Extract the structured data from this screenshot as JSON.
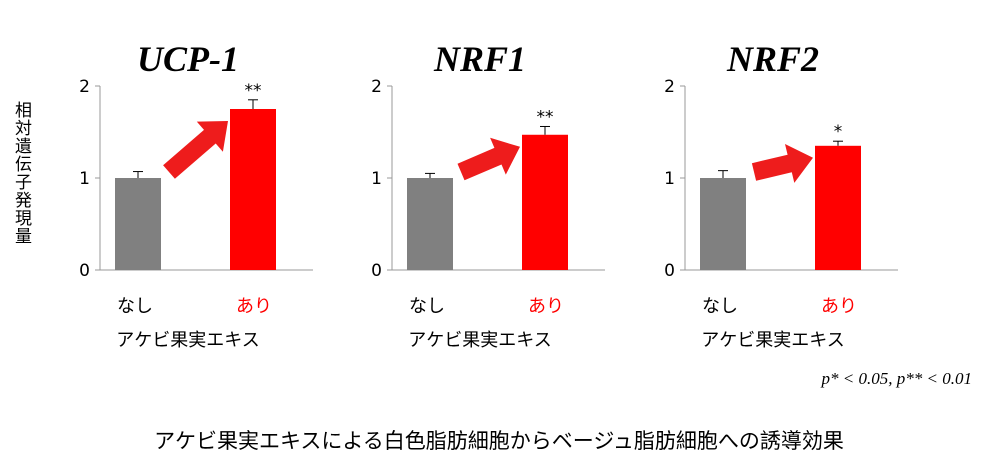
{
  "y_axis_label": "相対遺伝子発現量",
  "x_axis_title": "アケビ果実エキス",
  "significance_note": "p* < 0.05, p** < 0.01",
  "caption": "アケビ果実エキスによる白色脂肪細胞からベージュ脂肪細胞への誘導効果",
  "colors": {
    "control": "#808080",
    "treated": "#ff0000",
    "arrow": "#ee1c1c"
  },
  "chart_data": [
    {
      "type": "bar",
      "title": "UCP-1",
      "categories": [
        "なし",
        "あり"
      ],
      "values": [
        1.0,
        1.75
      ],
      "errors": [
        0.07,
        0.1
      ],
      "significance": [
        "",
        "**"
      ],
      "yticks": [
        "0",
        "1",
        "2"
      ],
      "ylim": [
        0,
        2
      ],
      "xlabel": "アケビ果実エキス",
      "ylabel": "相対遺伝子発現量"
    },
    {
      "type": "bar",
      "title": "NRF1",
      "categories": [
        "なし",
        "あり"
      ],
      "values": [
        1.0,
        1.47
      ],
      "errors": [
        0.05,
        0.09
      ],
      "significance": [
        "",
        "**"
      ],
      "yticks": [
        "0",
        "1",
        "2"
      ],
      "ylim": [
        0,
        2
      ],
      "xlabel": "アケビ果実エキス"
    },
    {
      "type": "bar",
      "title": "NRF2",
      "categories": [
        "なし",
        "あり"
      ],
      "values": [
        1.0,
        1.35
      ],
      "errors": [
        0.08,
        0.05
      ],
      "significance": [
        "",
        "*"
      ],
      "yticks": [
        "0",
        "1",
        "2"
      ],
      "ylim": [
        0,
        2
      ],
      "xlabel": "アケビ果実エキス"
    }
  ]
}
